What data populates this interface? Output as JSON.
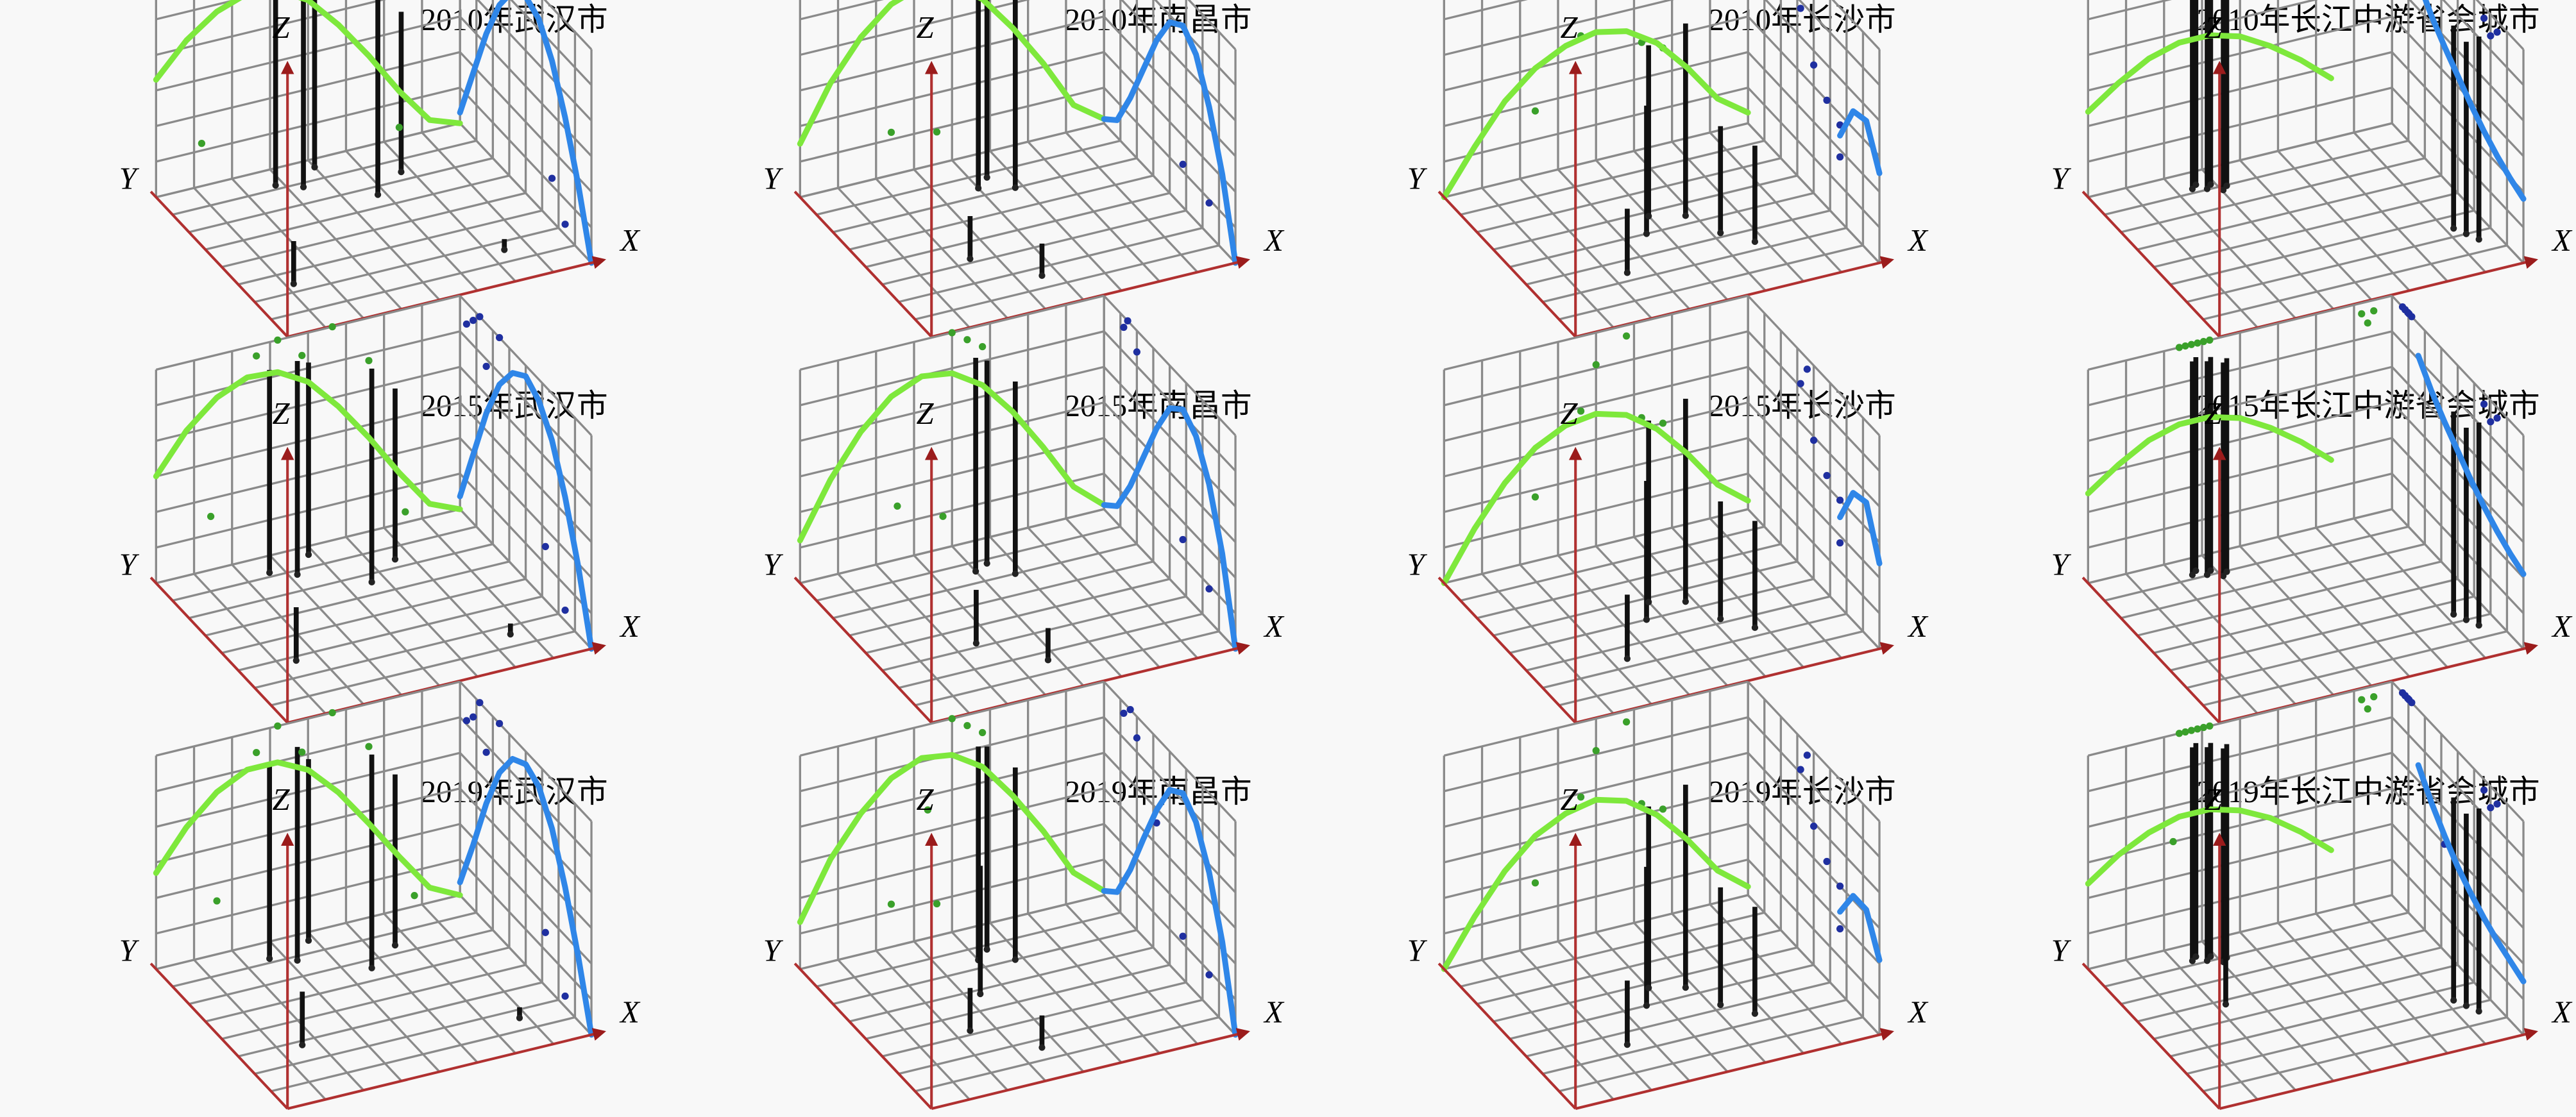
{
  "chart_data": [
    {
      "type": "trend3d",
      "title": "2010年武汉市",
      "x_label": "X",
      "y_label": "Y",
      "z_label": "Z",
      "x": [
        0,
        0.1,
        0.2,
        0.3,
        0.4,
        0.5,
        0.6,
        0.7,
        0.8,
        0.9,
        1
      ],
      "series": [
        {
          "along": "x",
          "color": "#7ee83c",
          "values": [
            0.55,
            0.7,
            0.8,
            0.85,
            0.83,
            0.75,
            0.6,
            0.42,
            0.22,
            0.05,
            0
          ]
        },
        {
          "along": "y",
          "color": "#2f86e8",
          "values": [
            0,
            0.3,
            0.55,
            0.75,
            0.88,
            0.92,
            0.88,
            0.75,
            0.55,
            0.3,
            0.05
          ]
        }
      ],
      "points": {
        "x": [
          0.35,
          0.42,
          0.5,
          0.6,
          0.72,
          0.15,
          0.8
        ],
        "y": [
          0.9,
          0.85,
          0.95,
          0.7,
          0.8,
          0.3,
          0.2
        ],
        "z": [
          0.9,
          0.95,
          0.85,
          1,
          0.75,
          0.2,
          0.05
        ]
      }
    },
    {
      "type": "trend3d",
      "title": "2010年南昌市",
      "x_label": "X",
      "y_label": "Y",
      "z_label": "Z",
      "x": [
        0,
        0.1,
        0.2,
        0.3,
        0.4,
        0.5,
        0.6,
        0.7,
        0.8,
        0.9,
        1
      ],
      "series": [
        {
          "along": "x",
          "color": "#7ee83c",
          "values": [
            0.25,
            0.5,
            0.68,
            0.8,
            0.85,
            0.82,
            0.72,
            0.55,
            0.35,
            0.12,
            0.02
          ]
        },
        {
          "along": "y",
          "color": "#2f86e8",
          "values": [
            0,
            0.35,
            0.6,
            0.78,
            0.85,
            0.8,
            0.65,
            0.45,
            0.25,
            0.08,
            0.02
          ]
        }
      ],
      "points": {
        "x": [
          0.5,
          0.55,
          0.6,
          0.3,
          0.45
        ],
        "y": [
          0.8,
          0.85,
          0.75,
          0.4,
          0.2
        ],
        "z": [
          1,
          0.95,
          0.9,
          0.2,
          0.15
        ]
      }
    },
    {
      "type": "trend3d",
      "title": "2010年长沙市",
      "x_label": "X",
      "y_label": "Y",
      "z_label": "Z",
      "x": [
        0,
        0.1,
        0.2,
        0.3,
        0.4,
        0.5,
        0.6,
        0.7,
        0.8,
        0.9,
        1
      ],
      "series": [
        {
          "along": "x",
          "color": "#7ee83c",
          "values": [
            0,
            0.2,
            0.38,
            0.5,
            0.57,
            0.6,
            0.57,
            0.48,
            0.33,
            0.15,
            0.05
          ]
        },
        {
          "along": "y",
          "color": "#2f86e8",
          "values": [
            0.42,
            0.6,
            0.58,
            0.4,
            null,
            null,
            null,
            null,
            null,
            null,
            null
          ]
        }
      ],
      "points": {
        "x": [
          0.45,
          0.5,
          0.6,
          0.65,
          0.72,
          0.3
        ],
        "y": [
          0.5,
          0.6,
          0.55,
          0.4,
          0.3,
          0.3
        ],
        "z": [
          0.6,
          0.8,
          0.9,
          0.5,
          0.45,
          0.3
        ]
      }
    },
    {
      "type": "trend3d",
      "title": "2010年长江中游省会城市",
      "x_label": "X",
      "y_label": "Y",
      "z_label": "Z",
      "x": [
        0,
        0.1,
        0.2,
        0.3,
        0.4,
        0.5,
        0.6,
        0.7,
        0.8,
        0.9,
        1
      ],
      "series": [
        {
          "along": "x",
          "color": "#7ee83c",
          "values": [
            0.4,
            0.5,
            0.58,
            0.62,
            0.62,
            0.58,
            0.5,
            0.4,
            0.28,
            null,
            null
          ]
        },
        {
          "along": "y",
          "color": "#2f86e8",
          "values": [
            0.3,
            0.33,
            0.37,
            0.42,
            0.48,
            0.55,
            0.62,
            0.7,
            0.8,
            null,
            null
          ]
        }
      ],
      "points": {
        "x": [
          0.3,
          0.32,
          0.34,
          0.36,
          0.38,
          0.4,
          0.9,
          0.92,
          0.94
        ],
        "y": [
          0.9,
          0.92,
          0.88,
          0.9,
          0.85,
          0.87,
          0.3,
          0.25,
          0.2
        ],
        "z": [
          1,
          1,
          1,
          1,
          1,
          1,
          0.95,
          0.9,
          0.95
        ]
      }
    },
    {
      "type": "trend3d",
      "title": "2015年武汉市",
      "x_label": "X",
      "y_label": "Y",
      "z_label": "Z",
      "x": [
        0,
        0.1,
        0.2,
        0.3,
        0.4,
        0.5,
        0.6,
        0.7,
        0.8,
        0.9,
        1
      ],
      "series": [
        {
          "along": "x",
          "color": "#7ee83c",
          "values": [
            0.5,
            0.68,
            0.8,
            0.86,
            0.85,
            0.77,
            0.62,
            0.44,
            0.24,
            0.06,
            0
          ]
        },
        {
          "along": "y",
          "color": "#2f86e8",
          "values": [
            0,
            0.32,
            0.58,
            0.78,
            0.9,
            0.95,
            0.9,
            0.78,
            0.58,
            0.32,
            0.06
          ]
        }
      ],
      "points": {
        "x": [
          0.33,
          0.4,
          0.48,
          0.58,
          0.7,
          0.18,
          0.82
        ],
        "y": [
          0.9,
          0.85,
          0.95,
          0.7,
          0.8,
          0.35,
          0.2
        ],
        "z": [
          0.95,
          1,
          0.9,
          1,
          0.8,
          0.25,
          0.05
        ]
      }
    },
    {
      "type": "trend3d",
      "title": "2015年南昌市",
      "x_label": "X",
      "y_label": "Y",
      "z_label": "Z",
      "x": [
        0,
        0.1,
        0.2,
        0.3,
        0.4,
        0.5,
        0.6,
        0.7,
        0.8,
        0.9,
        1
      ],
      "series": [
        {
          "along": "x",
          "color": "#7ee83c",
          "values": [
            0.2,
            0.45,
            0.64,
            0.77,
            0.83,
            0.81,
            0.72,
            0.56,
            0.36,
            0.14,
            0.02
          ]
        },
        {
          "along": "y",
          "color": "#2f86e8",
          "values": [
            0,
            0.38,
            0.64,
            0.8,
            0.86,
            0.8,
            0.64,
            0.44,
            0.24,
            0.08,
            0.02
          ]
        }
      ],
      "points": {
        "x": [
          0.5,
          0.55,
          0.6,
          0.32,
          0.47
        ],
        "y": [
          0.82,
          0.85,
          0.75,
          0.4,
          0.2
        ],
        "z": [
          1,
          0.95,
          0.9,
          0.25,
          0.15
        ]
      }
    },
    {
      "type": "trend3d",
      "title": "2015年长沙市",
      "x_label": "X",
      "y_label": "Y",
      "z_label": "Z",
      "x": [
        0,
        0.1,
        0.2,
        0.3,
        0.4,
        0.5,
        0.6,
        0.7,
        0.8,
        0.9,
        1
      ],
      "series": [
        {
          "along": "x",
          "color": "#7ee83c",
          "values": [
            0,
            0.22,
            0.4,
            0.53,
            0.6,
            0.62,
            0.58,
            0.48,
            0.33,
            0.15,
            0.04
          ]
        },
        {
          "along": "y",
          "color": "#2f86e8",
          "values": [
            0.4,
            0.62,
            0.6,
            0.42,
            null,
            null,
            null,
            null,
            null,
            null,
            null
          ]
        }
      ],
      "points": {
        "x": [
          0.45,
          0.5,
          0.6,
          0.65,
          0.72,
          0.3
        ],
        "y": [
          0.5,
          0.6,
          0.55,
          0.4,
          0.3,
          0.3
        ],
        "z": [
          0.65,
          0.85,
          0.95,
          0.55,
          0.5,
          0.3
        ]
      }
    },
    {
      "type": "trend3d",
      "title": "2015年长江中游省会城市",
      "x_label": "X",
      "y_label": "Y",
      "z_label": "Z",
      "x": [
        0,
        0.1,
        0.2,
        0.3,
        0.4,
        0.5,
        0.6,
        0.7,
        0.8,
        0.9,
        1
      ],
      "series": [
        {
          "along": "x",
          "color": "#7ee83c",
          "values": [
            0.42,
            0.52,
            0.6,
            0.64,
            0.64,
            0.6,
            0.52,
            0.42,
            0.3,
            null,
            null
          ]
        },
        {
          "along": "y",
          "color": "#2f86e8",
          "values": [
            0.35,
            0.38,
            0.42,
            0.47,
            0.53,
            0.6,
            0.67,
            0.75,
            0.85,
            null,
            null
          ]
        }
      ],
      "points": {
        "x": [
          0.3,
          0.32,
          0.34,
          0.36,
          0.38,
          0.4,
          0.9,
          0.92,
          0.94
        ],
        "y": [
          0.9,
          0.92,
          0.88,
          0.9,
          0.85,
          0.87,
          0.3,
          0.25,
          0.2
        ],
        "z": [
          1,
          1,
          1,
          1,
          1,
          1,
          0.95,
          0.9,
          0.95
        ]
      }
    },
    {
      "type": "trend3d",
      "title": "2019年武汉市",
      "x_label": "X",
      "y_label": "Y",
      "z_label": "Z",
      "x": [
        0,
        0.1,
        0.2,
        0.3,
        0.4,
        0.5,
        0.6,
        0.7,
        0.8,
        0.9,
        1
      ],
      "series": [
        {
          "along": "x",
          "color": "#7ee83c",
          "values": [
            0.45,
            0.63,
            0.76,
            0.83,
            0.83,
            0.76,
            0.62,
            0.44,
            0.25,
            0.07,
            0
          ]
        },
        {
          "along": "y",
          "color": "#2f86e8",
          "values": [
            0,
            0.3,
            0.56,
            0.77,
            0.9,
            0.94,
            0.9,
            0.77,
            0.56,
            0.3,
            0.06
          ]
        }
      ],
      "points": {
        "x": [
          0.33,
          0.4,
          0.48,
          0.58,
          0.7,
          0.2,
          0.85
        ],
        "y": [
          0.9,
          0.85,
          0.95,
          0.7,
          0.8,
          0.35,
          0.2
        ],
        "z": [
          0.9,
          1,
          0.85,
          1,
          0.8,
          0.25,
          0.05
        ]
      }
    },
    {
      "type": "trend3d",
      "title": "2019年南昌市",
      "x_label": "X",
      "y_label": "Y",
      "z_label": "Z",
      "x": [
        0,
        0.1,
        0.2,
        0.3,
        0.4,
        0.5,
        0.6,
        0.7,
        0.8,
        0.9,
        1
      ],
      "series": [
        {
          "along": "x",
          "color": "#7ee83c",
          "values": [
            0.22,
            0.48,
            0.66,
            0.79,
            0.85,
            0.83,
            0.74,
            0.57,
            0.37,
            0.14,
            0.02
          ]
        },
        {
          "along": "y",
          "color": "#2f86e8",
          "values": [
            0,
            0.37,
            0.63,
            0.8,
            0.87,
            0.82,
            0.66,
            0.46,
            0.25,
            0.08,
            0.02
          ]
        }
      ],
      "points": {
        "x": [
          0.5,
          0.55,
          0.6,
          0.3,
          0.45,
          0.42
        ],
        "y": [
          0.8,
          0.85,
          0.75,
          0.4,
          0.2,
          0.6
        ],
        "z": [
          1,
          0.95,
          0.9,
          0.2,
          0.15,
          0.6
        ]
      }
    },
    {
      "type": "trend3d",
      "title": "2019年长沙市",
      "x_label": "X",
      "y_label": "Y",
      "z_label": "Z",
      "x": [
        0,
        0.1,
        0.2,
        0.3,
        0.4,
        0.5,
        0.6,
        0.7,
        0.8,
        0.9,
        1
      ],
      "series": [
        {
          "along": "x",
          "color": "#7ee83c",
          "values": [
            0,
            0.21,
            0.39,
            0.52,
            0.59,
            0.62,
            0.58,
            0.48,
            0.33,
            0.15,
            0.04
          ]
        },
        {
          "along": "y",
          "color": "#2f86e8",
          "values": [
            0.35,
            0.52,
            0.52,
            0.38,
            null,
            null,
            null,
            null,
            null,
            null,
            null
          ]
        }
      ],
      "points": {
        "x": [
          0.45,
          0.5,
          0.6,
          0.65,
          0.72,
          0.3
        ],
        "y": [
          0.5,
          0.6,
          0.55,
          0.4,
          0.3,
          0.3
        ],
        "z": [
          0.65,
          0.85,
          0.95,
          0.55,
          0.5,
          0.3
        ]
      }
    },
    {
      "type": "trend3d",
      "title": "2019年长江中游省会城市",
      "x_label": "X",
      "y_label": "Y",
      "z_label": "Z",
      "x": [
        0,
        0.1,
        0.2,
        0.3,
        0.4,
        0.5,
        0.6,
        0.7,
        0.8,
        0.9,
        1
      ],
      "series": [
        {
          "along": "x",
          "color": "#7ee83c",
          "values": [
            0.4,
            0.5,
            0.57,
            0.61,
            0.61,
            0.57,
            0.5,
            0.4,
            0.28,
            null,
            null
          ]
        },
        {
          "along": "y",
          "color": "#2f86e8",
          "values": [
            0.25,
            0.28,
            0.31,
            0.35,
            0.4,
            0.46,
            0.54,
            0.63,
            0.74,
            null,
            null
          ]
        }
      ],
      "points": {
        "x": [
          0.3,
          0.32,
          0.34,
          0.36,
          0.38,
          0.4,
          0.9,
          0.92,
          0.94,
          0.28
        ],
        "y": [
          0.9,
          0.92,
          0.88,
          0.9,
          0.85,
          0.87,
          0.3,
          0.25,
          0.2,
          0.6
        ],
        "z": [
          1,
          1,
          1,
          1,
          1,
          1,
          0.95,
          0.9,
          0.95,
          0.5
        ]
      }
    }
  ]
}
